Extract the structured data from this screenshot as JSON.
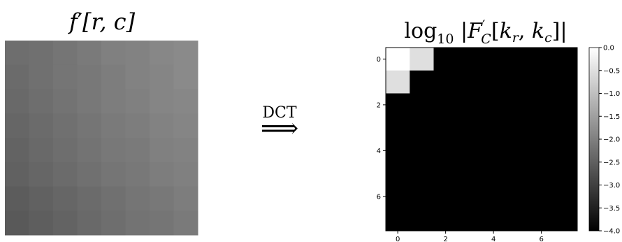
{
  "left_panel": {
    "title": {
      "f": "f",
      "prime": "′",
      "args": "[r, c]"
    },
    "pixels": [
      [
        0.43,
        0.44,
        0.46,
        0.48,
        0.5,
        0.51,
        0.53,
        0.54
      ],
      [
        0.42,
        0.44,
        0.46,
        0.47,
        0.49,
        0.51,
        0.52,
        0.54
      ],
      [
        0.41,
        0.43,
        0.45,
        0.47,
        0.49,
        0.5,
        0.52,
        0.53
      ],
      [
        0.4,
        0.42,
        0.44,
        0.46,
        0.48,
        0.49,
        0.51,
        0.52
      ],
      [
        0.39,
        0.41,
        0.43,
        0.45,
        0.47,
        0.48,
        0.5,
        0.51
      ],
      [
        0.38,
        0.4,
        0.42,
        0.44,
        0.46,
        0.47,
        0.49,
        0.5
      ],
      [
        0.36,
        0.38,
        0.4,
        0.42,
        0.44,
        0.46,
        0.47,
        0.49
      ],
      [
        0.35,
        0.37,
        0.39,
        0.41,
        0.43,
        0.45,
        0.46,
        0.48
      ]
    ]
  },
  "arrow": {
    "label": "DCT",
    "glyph": "⟹"
  },
  "right_panel": {
    "title": {
      "log": "log",
      "base": "10",
      "open": " |",
      "F": "F",
      "prime": "′",
      "sub": "C",
      "open_bracket": "[",
      "k1": "k",
      "k1sub": "r",
      "comma": ", ",
      "k2": "k",
      "k2sub": "c",
      "close": "]|"
    },
    "values": [
      [
        0.0,
        -0.5,
        -4,
        -4,
        -4,
        -4,
        -4,
        -4
      ],
      [
        -0.5,
        -4,
        -4,
        -4,
        -4,
        -4,
        -4,
        -4
      ],
      [
        -4,
        -4,
        -4,
        -4,
        -4,
        -4,
        -4,
        -4
      ],
      [
        -4,
        -4,
        -4,
        -4,
        -4,
        -4,
        -4,
        -4
      ],
      [
        -4,
        -4,
        -4,
        -4,
        -4,
        -4,
        -4,
        -4
      ],
      [
        -4,
        -4,
        -4,
        -4,
        -4,
        -4,
        -4,
        -4
      ],
      [
        -4,
        -4,
        -4,
        -4,
        -4,
        -4,
        -4,
        -4
      ],
      [
        -4,
        -4,
        -4,
        -4,
        -4,
        -4,
        -4,
        -4
      ]
    ],
    "x_ticks": [
      "0",
      "2",
      "4",
      "6"
    ],
    "y_ticks": [
      "0",
      "2",
      "4",
      "6"
    ],
    "colorbar": {
      "min": -4.0,
      "max": 0.0,
      "tick_values": [
        0.0,
        -0.5,
        -1.0,
        -1.5,
        -2.0,
        -2.5,
        -3.0,
        -3.5,
        -4.0
      ],
      "tick_labels": [
        "0.0",
        "−0.5",
        "−1.0",
        "−1.5",
        "−2.0",
        "−2.5",
        "−3.0",
        "−3.5",
        "−4.0"
      ]
    }
  }
}
